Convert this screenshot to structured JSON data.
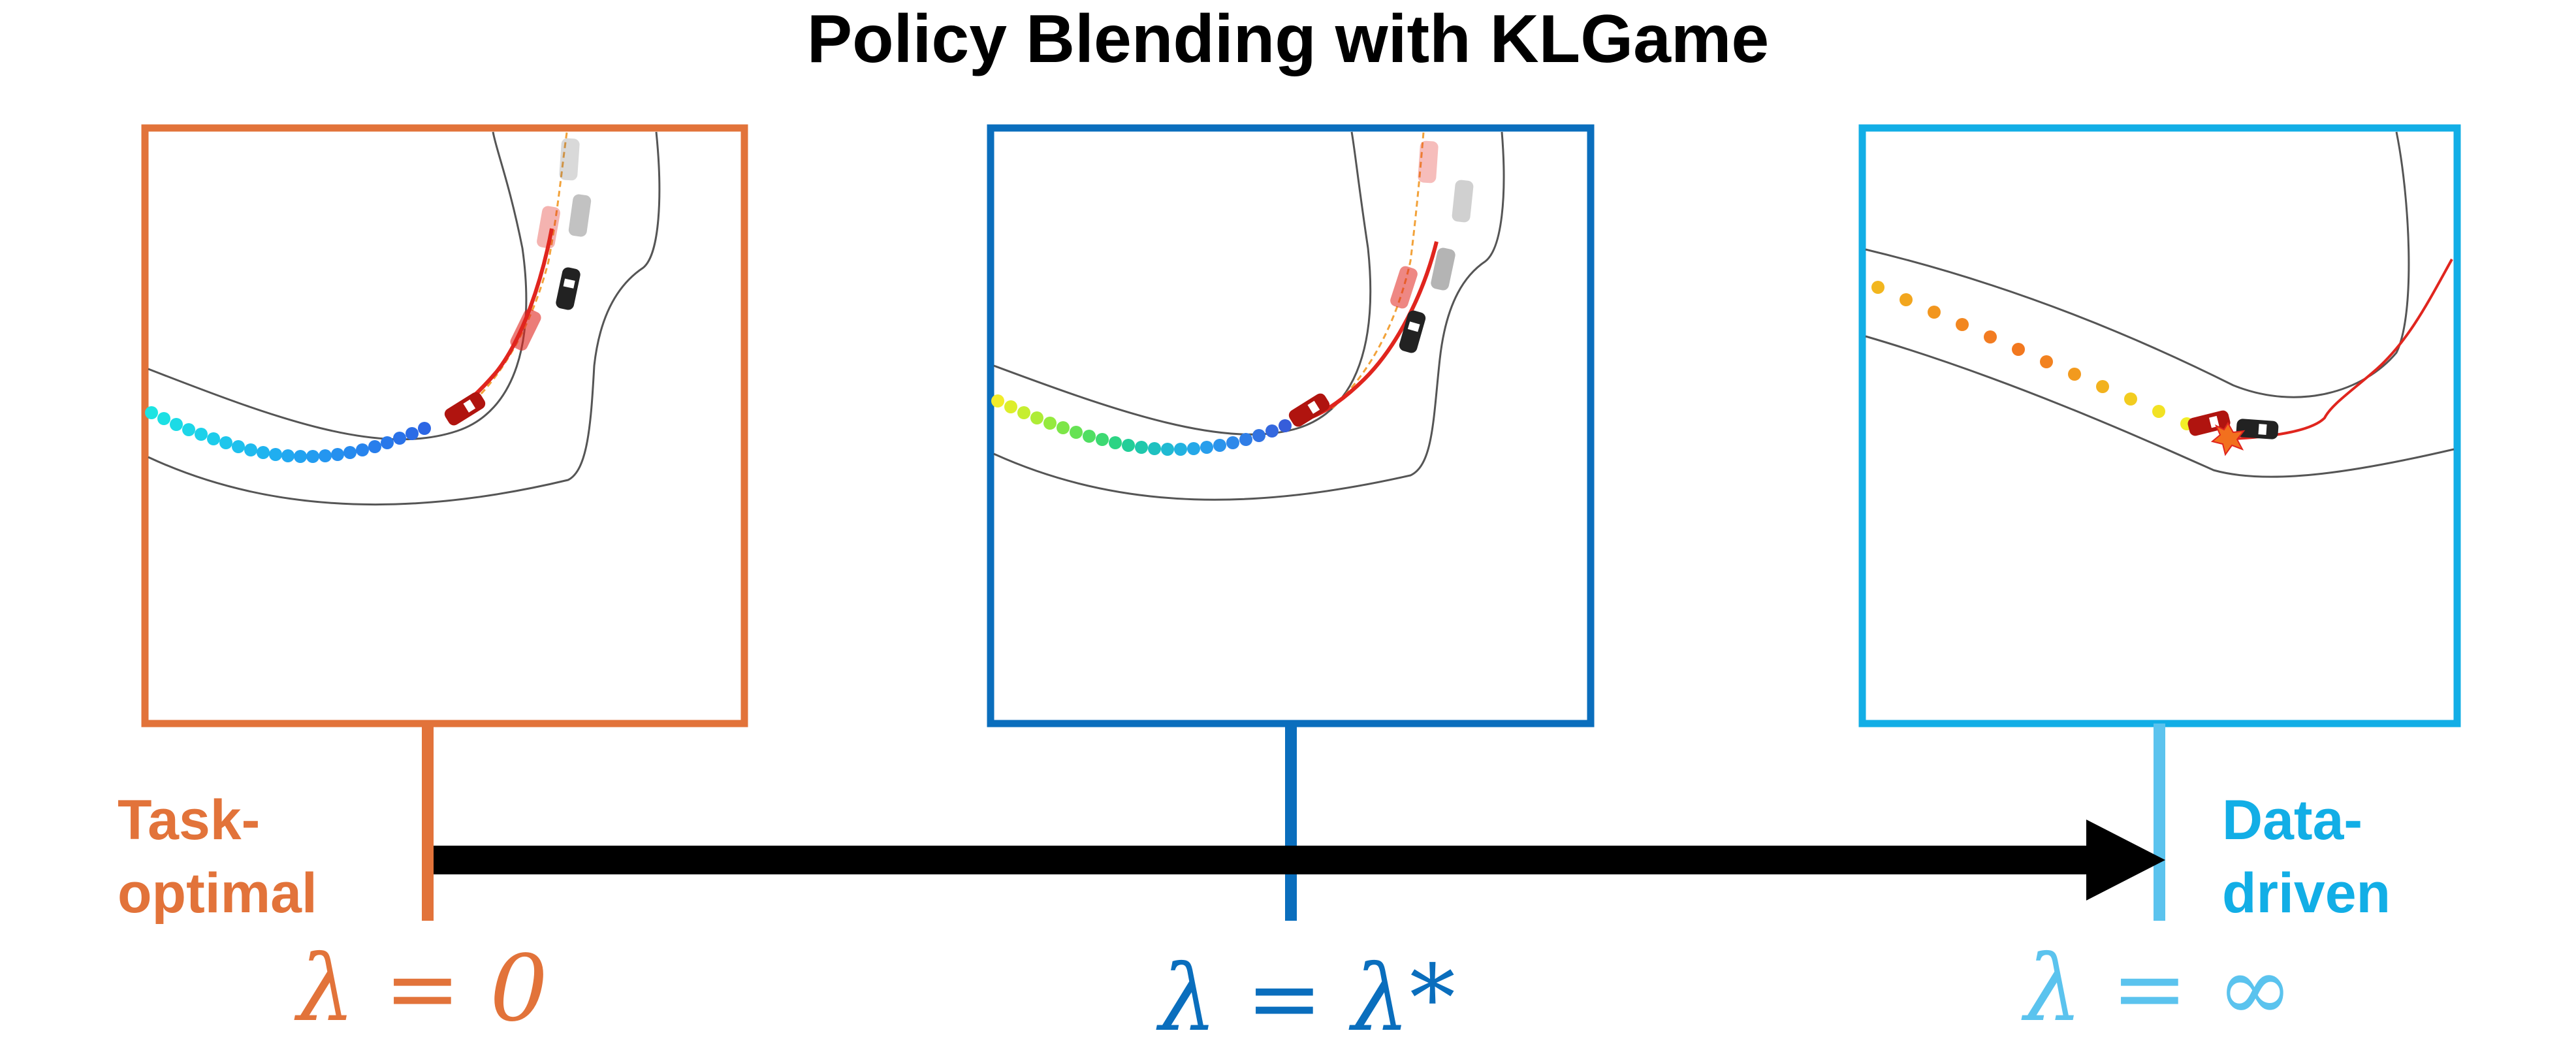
{
  "title": "Policy Blending with KLGame",
  "colors": {
    "orange": "#E2733A",
    "dark_blue": "#0A6EBD",
    "light_blue": "#12AEE6",
    "lightest_blue": "#5BC3EE",
    "road": "#555555",
    "trajectory": "#E0251E",
    "reference": "#F2A23A",
    "arrow": "#000000"
  },
  "panels": [
    {
      "id": "task-optimal",
      "color": "orange",
      "dot_palette": "cyan-blue",
      "lambda_label": "λ = 0"
    },
    {
      "id": "blended",
      "color": "dark_blue",
      "dot_palette": "yellow-green-blue",
      "lambda_label": "λ = λ*"
    },
    {
      "id": "data-driven",
      "color": "light_blue",
      "dot_palette": "orange-yellow",
      "lambda_label": "λ = ∞",
      "collision": true
    }
  ],
  "left_label": {
    "line1": "Task-",
    "line2": "optimal"
  },
  "right_label": {
    "line1": "Data-",
    "line2": "driven"
  },
  "icons": [
    "car-icon",
    "collision-icon",
    "arrow-head-icon"
  ]
}
